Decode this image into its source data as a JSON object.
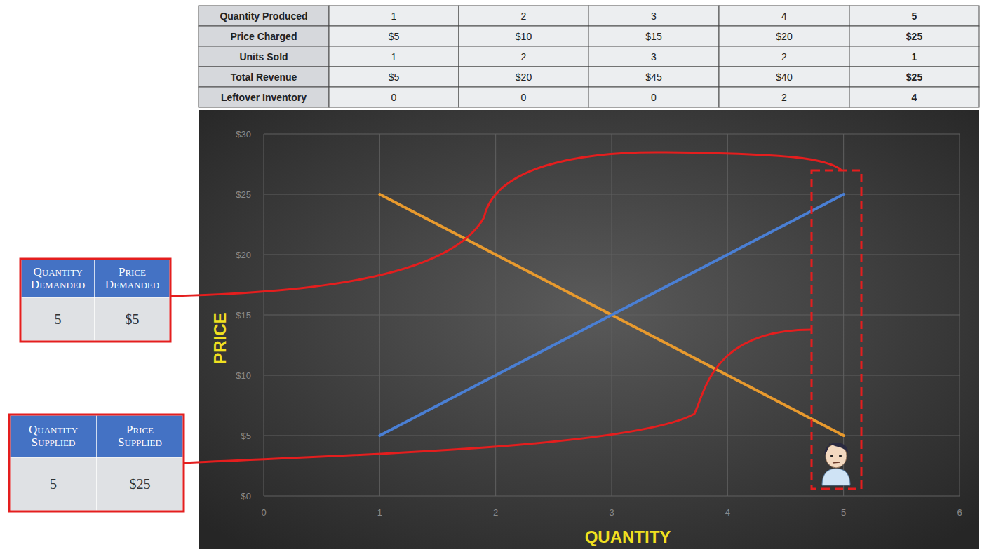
{
  "table": {
    "rows": [
      [
        "Quantity Produced",
        "1",
        "2",
        "3",
        "4",
        "5"
      ],
      [
        "Price Charged",
        "$5",
        "$10",
        "$15",
        "$20",
        "$25"
      ],
      [
        "Units Sold",
        "1",
        "2",
        "3",
        "2",
        "1"
      ],
      [
        "Total Revenue",
        "$5",
        "$20",
        "$45",
        "$40",
        "$25"
      ],
      [
        "Leftover Inventory",
        "0",
        "0",
        "0",
        "2",
        "4"
      ]
    ]
  },
  "demand_table": {
    "header": [
      "Quantity Demanded",
      "Price Demanded"
    ],
    "row": [
      "5",
      "$5"
    ]
  },
  "supply_table": {
    "header": [
      "Quantity Supplied",
      "Price Supplied"
    ],
    "row": [
      "5",
      "$25"
    ]
  },
  "chart_data": {
    "type": "line",
    "x_label": "QUANTITY",
    "y_label": "PRICE",
    "x": [
      1,
      2,
      3,
      4,
      5
    ],
    "series": [
      {
        "color": "#e89a2e",
        "values": [
          25,
          20,
          15,
          10,
          5
        ]
      },
      {
        "color": "#4a7fd4",
        "values": [
          5,
          10,
          15,
          20,
          25
        ]
      }
    ],
    "xlim": [
      0,
      6
    ],
    "xticks": [
      0,
      1,
      2,
      3,
      4,
      5,
      6
    ],
    "ylim": [
      0,
      30
    ],
    "yticks": [
      {
        "value": 0,
        "label": "$0"
      },
      {
        "value": 5,
        "label": "$5"
      },
      {
        "value": 10,
        "label": "$10"
      },
      {
        "value": 15,
        "label": "$15"
      },
      {
        "value": 20,
        "label": "$20"
      },
      {
        "value": 25,
        "label": "$25"
      },
      {
        "value": 30,
        "label": "$30"
      }
    ],
    "grid": true
  }
}
